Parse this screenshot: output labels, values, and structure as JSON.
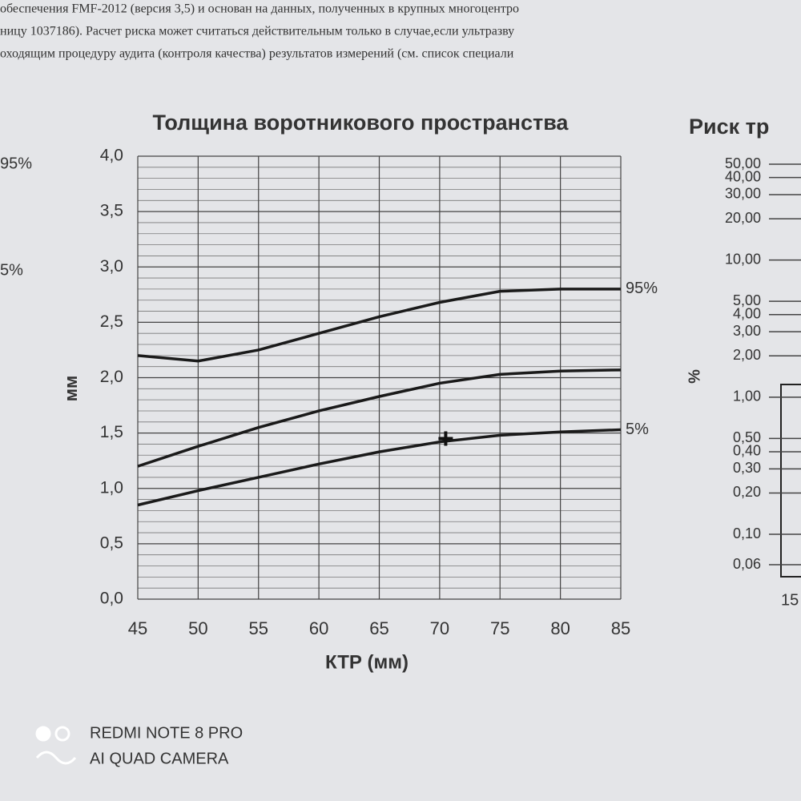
{
  "header": {
    "lines": [
      "обеспечения FMF-2012 (версия 3,5) и основан на данных, полученных в крупных многоцентро",
      "ницу 1037186). Расчет риска может считаться действительным только в случае,если ультразву",
      "оходящим процедуру аудита (контроля качества) результатов измерений (см. список специали"
    ]
  },
  "left_fragments": [
    "95%",
    "5%"
  ],
  "chart_data": {
    "type": "line",
    "title": "Толщина воротникового пространства",
    "x_label": "КТР (мм)",
    "y_label": "мм",
    "x": [
      45,
      50,
      55,
      60,
      65,
      70,
      75,
      80,
      85
    ],
    "series": [
      {
        "name": "95%",
        "color": "#1a1a1a",
        "values": [
          2.2,
          2.15,
          2.25,
          2.4,
          2.55,
          2.68,
          2.78,
          2.8,
          2.8
        ]
      },
      {
        "color": "#1a1a1a",
        "values": [
          1.2,
          1.38,
          1.55,
          1.7,
          1.83,
          1.95,
          2.03,
          2.06,
          2.07
        ]
      },
      {
        "name": "5%",
        "color": "#1a1a1a",
        "values": [
          0.85,
          0.98,
          1.1,
          1.22,
          1.33,
          1.42,
          1.48,
          1.51,
          1.53
        ]
      }
    ],
    "point": {
      "x": 70.5,
      "y": 1.45
    },
    "xlim": [
      45,
      85
    ],
    "xticks": [
      45,
      50,
      55,
      60,
      65,
      70,
      75,
      80,
      85
    ],
    "ylim": [
      0,
      4
    ],
    "yticks": [
      {
        "value": 0,
        "label": "0,0"
      },
      {
        "value": 0.5,
        "label": "0,5"
      },
      {
        "value": 1,
        "label": "1,0"
      },
      {
        "value": 1.5,
        "label": "1,5"
      },
      {
        "value": 2,
        "label": "2,0"
      },
      {
        "value": 2.5,
        "label": "2,5"
      },
      {
        "value": 3,
        "label": "3,0"
      },
      {
        "value": 3.5,
        "label": "3,5"
      },
      {
        "value": 4,
        "label": "4,0"
      }
    ],
    "grid": true
  },
  "right_chart": {
    "title": "Риск тр",
    "y_label": "%",
    "log_scale": true,
    "ylim": [
      50,
      0.06
    ],
    "yticks": [
      {
        "value": 50,
        "label": "50,00"
      },
      {
        "value": 40,
        "label": "40,00"
      },
      {
        "value": 30,
        "label": "30,00"
      },
      {
        "value": 20,
        "label": "20,00"
      },
      {
        "value": 10,
        "label": "10,00"
      },
      {
        "value": 5,
        "label": "5,00"
      },
      {
        "value": 4,
        "label": "4,00"
      },
      {
        "value": 3,
        "label": "3,00"
      },
      {
        "value": 2,
        "label": "2,00"
      },
      {
        "value": 1,
        "label": "1,00"
      },
      {
        "value": 0.5,
        "label": "0,50"
      },
      {
        "value": 0.4,
        "label": "0,40"
      },
      {
        "value": 0.3,
        "label": "0,30"
      },
      {
        "value": 0.2,
        "label": "0,20"
      },
      {
        "value": 0.1,
        "label": "0,10"
      },
      {
        "value": 0.06,
        "label": "0,06"
      }
    ],
    "x_tick": "15"
  },
  "watermark": [
    "REDMI NOTE 8 PRO",
    "AI QUAD CAMERA"
  ]
}
